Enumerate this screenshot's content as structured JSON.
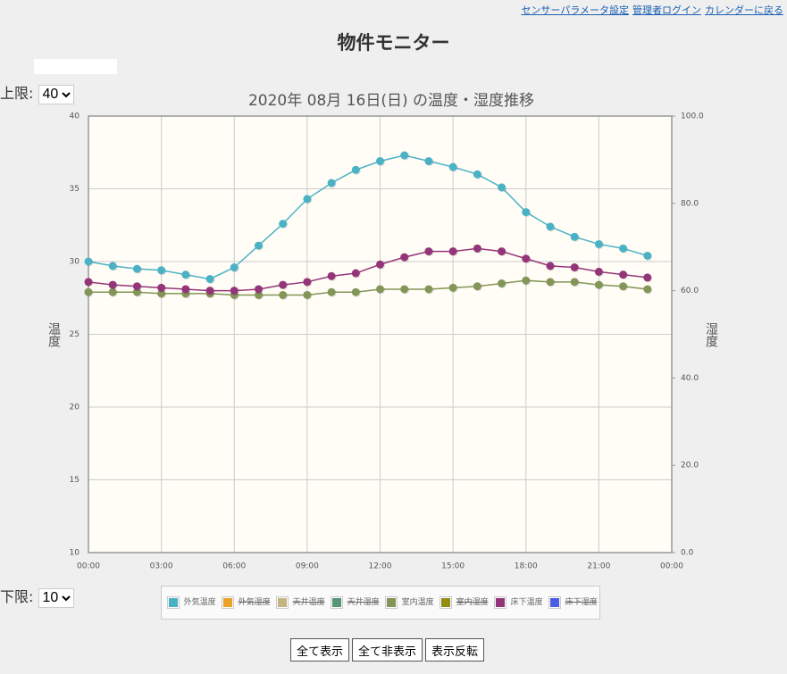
{
  "header": {
    "links": [
      "センサーパラメータ設定",
      "管理者ログイン",
      "カレンダーに戻る"
    ],
    "title": "物件モニター"
  },
  "controls": {
    "upper_label": "上限:",
    "upper_value": "40",
    "lower_label": "下限:",
    "lower_value": "10",
    "buttons": [
      "全て表示",
      "全て非表示",
      "表示反転"
    ]
  },
  "chart_data": {
    "type": "line",
    "title": "2020年 08月 16日(日) の温度・湿度推移",
    "y_label": "温度",
    "y2_label": "湿度",
    "x": [
      0,
      1,
      2,
      3,
      4,
      5,
      6,
      7,
      8,
      9,
      10,
      11,
      12,
      13,
      14,
      15,
      16,
      17,
      18,
      19,
      20,
      21,
      22,
      23
    ],
    "xlim": [
      0,
      24
    ],
    "xticks": [
      {
        "value": 0,
        "label": "00:00"
      },
      {
        "value": 3,
        "label": "03:00"
      },
      {
        "value": 6,
        "label": "06:00"
      },
      {
        "value": 9,
        "label": "09:00"
      },
      {
        "value": 12,
        "label": "12:00"
      },
      {
        "value": 15,
        "label": "15:00"
      },
      {
        "value": 18,
        "label": "18:00"
      },
      {
        "value": 21,
        "label": "21:00"
      },
      {
        "value": 24,
        "label": "00:00"
      }
    ],
    "ylim": [
      10,
      40
    ],
    "yticks": [
      10,
      15,
      20,
      25,
      30,
      35,
      40
    ],
    "y2lim": [
      0,
      100
    ],
    "y2ticks": [
      {
        "value": 0,
        "label": "0.0"
      },
      {
        "value": 20,
        "label": "20.0"
      },
      {
        "value": 40,
        "label": "40.0"
      },
      {
        "value": 60,
        "label": "60.0"
      },
      {
        "value": 80,
        "label": "80.0"
      },
      {
        "value": 100,
        "label": "100.0"
      }
    ],
    "grid": true,
    "series": [
      {
        "name": "外気温度",
        "color": "#4bb2c5",
        "hidden": false,
        "values": [
          30.0,
          29.7,
          29.5,
          29.4,
          29.1,
          28.8,
          29.6,
          31.1,
          32.6,
          34.3,
          35.4,
          36.3,
          36.9,
          37.3,
          36.9,
          36.5,
          36.0,
          35.1,
          33.4,
          32.4,
          31.7,
          31.2,
          30.9,
          30.4
        ]
      },
      {
        "name": "外気湿度",
        "color": "#eaa228",
        "hidden": true,
        "values": [
          null,
          null,
          null,
          null,
          null,
          null,
          null,
          null,
          null,
          null,
          null,
          null,
          null,
          null,
          null,
          null,
          null,
          null,
          null,
          null,
          null,
          null,
          null,
          null
        ]
      },
      {
        "name": "天井温度",
        "color": "#c5b47f",
        "hidden": true,
        "values": [
          null,
          null,
          null,
          null,
          null,
          null,
          null,
          null,
          null,
          null,
          null,
          null,
          null,
          null,
          null,
          null,
          null,
          null,
          null,
          null,
          null,
          null,
          null,
          null
        ]
      },
      {
        "name": "天井湿度",
        "color": "#579575",
        "hidden": true,
        "values": [
          null,
          null,
          null,
          null,
          null,
          null,
          null,
          null,
          null,
          null,
          null,
          null,
          null,
          null,
          null,
          null,
          null,
          null,
          null,
          null,
          null,
          null,
          null,
          null
        ]
      },
      {
        "name": "室内温度",
        "color": "#839557",
        "hidden": false,
        "values": [
          27.9,
          27.9,
          27.9,
          27.8,
          27.8,
          27.8,
          27.7,
          27.7,
          27.7,
          27.7,
          27.9,
          27.9,
          28.1,
          28.1,
          28.1,
          28.2,
          28.3,
          28.5,
          28.7,
          28.6,
          28.6,
          28.4,
          28.3,
          28.1
        ]
      },
      {
        "name": "室内湿度",
        "color": "#958c12",
        "hidden": true,
        "values": [
          null,
          null,
          null,
          null,
          null,
          null,
          null,
          null,
          null,
          null,
          null,
          null,
          null,
          null,
          null,
          null,
          null,
          null,
          null,
          null,
          null,
          null,
          null,
          null
        ]
      },
      {
        "name": "床下温度",
        "color": "#953579",
        "hidden": false,
        "values": [
          28.6,
          28.4,
          28.3,
          28.2,
          28.1,
          28.0,
          28.0,
          28.1,
          28.4,
          28.6,
          29.0,
          29.2,
          29.8,
          30.3,
          30.7,
          30.7,
          30.9,
          30.7,
          30.2,
          29.7,
          29.6,
          29.3,
          29.1,
          28.9
        ]
      },
      {
        "name": "床下湿度",
        "color": "#4b5de4",
        "hidden": true,
        "values": [
          null,
          null,
          null,
          null,
          null,
          null,
          null,
          null,
          null,
          null,
          null,
          null,
          null,
          null,
          null,
          null,
          null,
          null,
          null,
          null,
          null,
          null,
          null,
          null
        ]
      }
    ]
  }
}
